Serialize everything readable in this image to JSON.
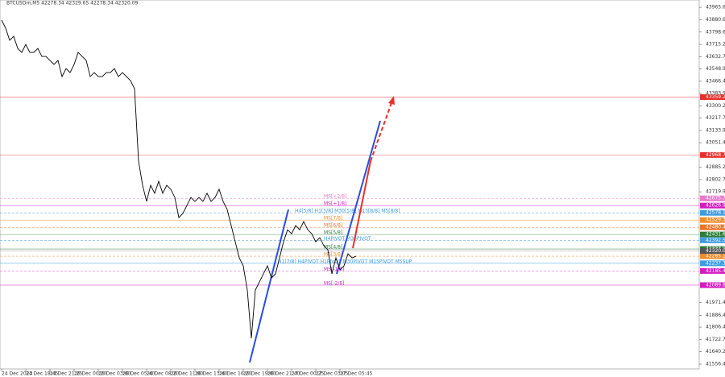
{
  "chart_data": {
    "type": "line",
    "title": "BTCUSDm,M5  42278.34 42329.65 42278.34 42320.09",
    "categories": [
      "24 Dec 2023",
      null,
      null,
      null,
      null,
      null,
      "24 Dec 18:45",
      null,
      null,
      null,
      null,
      null,
      "24 Dec 21:25",
      null,
      null,
      null,
      null,
      null,
      "26 Dec 00:20",
      null,
      null,
      null,
      null,
      null,
      "26 Dec 03:00",
      null,
      null,
      null,
      null,
      null,
      "26 Dec 05:40",
      null,
      null,
      null,
      null,
      null,
      "26 Dec 08:20",
      null,
      null,
      null,
      null,
      null,
      "26 Dec 11:00",
      null,
      null,
      null,
      null,
      null,
      "26 Dec 13:40",
      null,
      null,
      null,
      null,
      null,
      "26 Dec 16:20",
      null,
      null,
      null,
      null,
      null,
      "26 Dec 19:00",
      null,
      null,
      null,
      null,
      null,
      "26 Dec 21:40",
      null,
      null,
      null,
      null,
      null,
      "27 Dec 00:25",
      null,
      null,
      null,
      null,
      null,
      "27 Dec 03:05",
      null,
      null,
      null,
      null,
      null,
      "27 Dec 05:45",
      null,
      null,
      null,
      null
    ],
    "series": [
      {
        "name": "BTCUSDm,M5",
        "color": "#000000",
        "values": [
          43879,
          43825,
          43743,
          43770,
          43688,
          43661,
          43715,
          43661,
          43661,
          43688,
          43634,
          43634,
          43607,
          43580,
          43607,
          43498,
          43552,
          43525,
          43580,
          43661,
          43634,
          43607,
          43498,
          43525,
          43498,
          43498,
          43525,
          43525,
          43552,
          43498,
          43525,
          43498,
          43471,
          43416,
          42927,
          42764,
          42655,
          42764,
          42710,
          42791,
          42710,
          42764,
          42737,
          42682,
          42546,
          42574,
          42628,
          42682,
          42655,
          42682,
          42655,
          42710,
          42655,
          42682,
          42737,
          42655,
          42601,
          42492,
          42383,
          42274,
          42220,
          42057,
          41731,
          42057,
          42111,
          42166,
          42220,
          42138,
          42166,
          42274,
          42383,
          42464,
          42437,
          42492,
          42464,
          42519,
          42464,
          42437,
          42383,
          42410,
          42356,
          42328,
          42166,
          42274,
          42193,
          42220,
          42301,
          42274,
          42285
        ]
      }
    ],
    "ylim": [
      41524,
      44015
    ],
    "yticks": [
      43965.65,
      43880.6,
      43798.65,
      43715.2,
      43632.7,
      43548.95,
      43466.45,
      43383.95,
      43300.2,
      43217.7,
      43133.95,
      43051.45,
      42885.2,
      42802.7,
      42719.95,
      41971.45,
      41886.45,
      41806.45,
      41722.7,
      41640.2,
      41556.45
    ],
    "levels": [
      {
        "value": 43359.28,
        "color": "#e8302a"
      },
      {
        "value": 42968.75,
        "color": "#e8302a"
      },
      {
        "value": 42675.78,
        "color": "#e879c9",
        "name": "MS[+2/8]"
      },
      {
        "value": 42626.95,
        "color": "#d21dbf",
        "name": "MS[+1/8]"
      },
      {
        "value": 42578.13,
        "color": "#3d9be0",
        "name": "H4[5/8] H1[5/8] M30[5/8] M15[8/8] M5[8/8]"
      },
      {
        "value": 42529.3,
        "color": "#f08c2a",
        "name": "MS[7/8]"
      },
      {
        "value": 42480.47,
        "color": "#e8742a",
        "name": "MS[6/8]"
      },
      {
        "value": 42431.64,
        "color": "#2f7a3a",
        "name": "MS[5/8]"
      },
      {
        "value": 42392.58,
        "color": "#3d9be0",
        "name": "H4PIVOT M30PIVOT"
      },
      {
        "value": 42333.98,
        "color": "#2f7a3a",
        "name": "MS[4/8]"
      },
      {
        "value": 42285.16,
        "color": "#f08c2a",
        "name": "MS[3/8]"
      },
      {
        "value": 42237.3,
        "color": "#3d9be0",
        "name": "H1[7/8] H4PIVOT H1PIVOT M30PIVOT M15PIVOT M5SUP"
      },
      {
        "value": 42185.47,
        "color": "#d21dbf",
        "name": "MS[-1/8]"
      },
      {
        "value": 42089.84,
        "color": "#d21dbf",
        "name": "MS[-2/8]"
      }
    ],
    "current_price": 42320.09
  }
}
